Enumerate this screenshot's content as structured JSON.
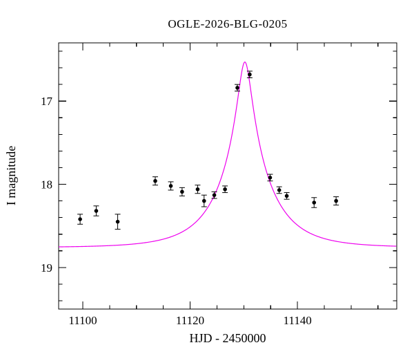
{
  "chart_data": {
    "type": "scatter",
    "title": "OGLE-2026-BLG-0205",
    "xlabel": "HJD - 2450000",
    "ylabel": "I magnitude",
    "x_range": [
      11095.5,
      11158.5
    ],
    "y_range_mag": [
      16.3,
      19.5
    ],
    "y_axis_inverted_magnitude_scale": true,
    "grid": false,
    "legend": "none",
    "x_major_ticks": [
      11100,
      11120,
      11140
    ],
    "x_minor_step": 5,
    "y_major_ticks": [
      17,
      18,
      19
    ],
    "y_minor_step": 0.2,
    "point_color": "#000000",
    "axis_color": "#000000",
    "background": "#ffffff",
    "points": [
      {
        "t": 11099.5,
        "mag": 18.42,
        "err": 0.06
      },
      {
        "t": 11102.5,
        "mag": 18.32,
        "err": 0.06
      },
      {
        "t": 11106.5,
        "mag": 18.45,
        "err": 0.09
      },
      {
        "t": 11113.5,
        "mag": 17.96,
        "err": 0.05
      },
      {
        "t": 11116.4,
        "mag": 18.02,
        "err": 0.05
      },
      {
        "t": 11118.5,
        "mag": 18.09,
        "err": 0.05
      },
      {
        "t": 11121.4,
        "mag": 18.06,
        "err": 0.05
      },
      {
        "t": 11122.6,
        "mag": 18.2,
        "err": 0.07
      },
      {
        "t": 11124.5,
        "mag": 18.13,
        "err": 0.04
      },
      {
        "t": 11126.5,
        "mag": 18.06,
        "err": 0.04
      },
      {
        "t": 11128.8,
        "mag": 16.84,
        "err": 0.04
      },
      {
        "t": 11131.1,
        "mag": 16.68,
        "err": 0.04
      },
      {
        "t": 11134.9,
        "mag": 17.92,
        "err": 0.04
      },
      {
        "t": 11136.6,
        "mag": 18.07,
        "err": 0.04
      },
      {
        "t": 11138.0,
        "mag": 18.14,
        "err": 0.04
      },
      {
        "t": 11143.1,
        "mag": 18.22,
        "err": 0.06
      },
      {
        "t": 11147.2,
        "mag": 18.2,
        "err": 0.05
      }
    ],
    "model_curve": {
      "type": "paczynski-microlensing",
      "t0": 11130.2,
      "tE_days": 9.0,
      "u0": 0.129,
      "baseline_mag": 18.76,
      "peak_mag": 16.53,
      "color": "#ee00ee"
    }
  }
}
